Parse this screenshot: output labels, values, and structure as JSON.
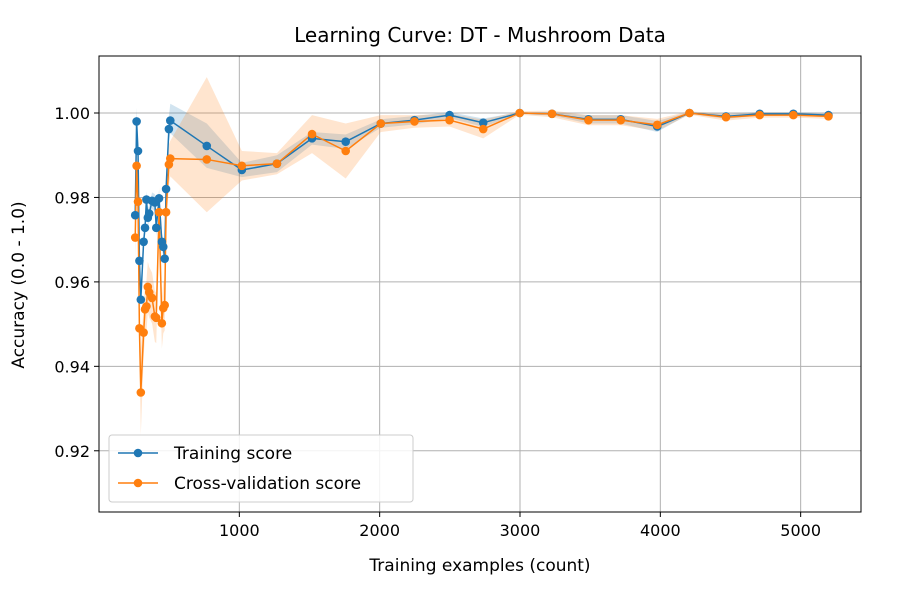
{
  "chart_data": {
    "type": "line",
    "title": "Learning Curve: DT - Mushroom Data",
    "xlabel": "Training examples (count)",
    "ylabel": "Accuracy (0.0 - 1.0)",
    "xlim": [
      0,
      5430
    ],
    "ylim": [
      0.9055,
      1.0135
    ],
    "x_ticks": [
      1000,
      2000,
      3000,
      4000,
      5000
    ],
    "y_ticks": [
      0.92,
      0.94,
      0.96,
      0.98,
      1.0
    ],
    "y_tick_labels": [
      "0.92",
      "0.94",
      "0.96",
      "0.98",
      "1.00"
    ],
    "grid": true,
    "legend_position": "lower-left",
    "series": [
      {
        "name": "Training score",
        "color": "#1f77b4",
        "points": [
          [
            258,
            0.9758
          ],
          [
            268,
            0.998
          ],
          [
            278,
            0.991
          ],
          [
            288,
            0.965
          ],
          [
            298,
            0.9558
          ],
          [
            318,
            0.9695
          ],
          [
            328,
            0.9728
          ],
          [
            338,
            0.9795
          ],
          [
            348,
            0.9752
          ],
          [
            358,
            0.9762
          ],
          [
            378,
            0.9792
          ],
          [
            398,
            0.9788
          ],
          [
            408,
            0.9728
          ],
          [
            428,
            0.9798
          ],
          [
            448,
            0.9695
          ],
          [
            458,
            0.9683
          ],
          [
            468,
            0.9655
          ],
          [
            478,
            0.982
          ],
          [
            498,
            0.9962
          ],
          [
            508,
            0.9982
          ],
          [
            768,
            0.9922
          ],
          [
            1018,
            0.9865
          ],
          [
            1268,
            0.988
          ],
          [
            1518,
            0.994
          ],
          [
            1758,
            0.9932
          ],
          [
            2008,
            0.9975
          ],
          [
            2248,
            0.9983
          ],
          [
            2498,
            0.9995
          ],
          [
            2738,
            0.9977
          ],
          [
            2998,
            1.0
          ],
          [
            3228,
            0.9998
          ],
          [
            3488,
            0.9985
          ],
          [
            3718,
            0.9985
          ],
          [
            3978,
            0.9968
          ],
          [
            4208,
            1.0
          ],
          [
            4468,
            0.9992
          ],
          [
            4708,
            0.9998
          ],
          [
            4948,
            0.9998
          ],
          [
            5198,
            0.9995
          ]
        ],
        "band": [
          [
            258,
            0.9738,
            0.9778
          ],
          [
            268,
            0.9948,
            1.0012
          ],
          [
            278,
            0.9885,
            0.9935
          ],
          [
            288,
            0.9628,
            0.9672
          ],
          [
            298,
            0.9538,
            0.9578
          ],
          [
            318,
            0.9675,
            0.9715
          ],
          [
            328,
            0.9708,
            0.9748
          ],
          [
            338,
            0.9775,
            0.9815
          ],
          [
            348,
            0.9732,
            0.9772
          ],
          [
            358,
            0.9742,
            0.9782
          ],
          [
            378,
            0.9772,
            0.9812
          ],
          [
            398,
            0.9768,
            0.9808
          ],
          [
            408,
            0.9708,
            0.9748
          ],
          [
            428,
            0.9778,
            0.9818
          ],
          [
            448,
            0.9675,
            0.9715
          ],
          [
            458,
            0.9663,
            0.9703
          ],
          [
            468,
            0.9635,
            0.9675
          ],
          [
            478,
            0.98,
            0.984
          ],
          [
            498,
            0.9932,
            0.9992
          ],
          [
            508,
            0.9952,
            1.0022
          ],
          [
            768,
            0.987,
            0.9975
          ],
          [
            1018,
            0.9848,
            0.9882
          ],
          [
            1268,
            0.986,
            0.99
          ],
          [
            1518,
            0.9925,
            0.9955
          ],
          [
            1758,
            0.9915,
            0.9949
          ],
          [
            2008,
            0.9965,
            0.9985
          ],
          [
            2248,
            0.9973,
            0.9993
          ],
          [
            2498,
            0.9988,
            1.0002
          ],
          [
            2738,
            0.9967,
            0.9987
          ],
          [
            2998,
            0.9998,
            1.0002
          ],
          [
            3228,
            0.9994,
            1.0002
          ],
          [
            3488,
            0.9975,
            0.9995
          ],
          [
            3718,
            0.9975,
            0.9995
          ],
          [
            3978,
            0.9955,
            0.9981
          ],
          [
            4208,
            0.9998,
            1.0002
          ],
          [
            4468,
            0.9986,
            0.9998
          ],
          [
            4708,
            0.9994,
            1.0002
          ],
          [
            4948,
            0.9994,
            1.0002
          ],
          [
            5198,
            0.9991,
            0.9999
          ]
        ]
      },
      {
        "name": "Cross-validation score",
        "color": "#ff7f0e",
        "points": [
          [
            258,
            0.9705
          ],
          [
            268,
            0.9875
          ],
          [
            278,
            0.979
          ],
          [
            288,
            0.949
          ],
          [
            298,
            0.9338
          ],
          [
            318,
            0.948
          ],
          [
            328,
            0.9535
          ],
          [
            338,
            0.9542
          ],
          [
            348,
            0.9588
          ],
          [
            358,
            0.9575
          ],
          [
            378,
            0.9562
          ],
          [
            398,
            0.9518
          ],
          [
            408,
            0.9515
          ],
          [
            428,
            0.9765
          ],
          [
            448,
            0.9502
          ],
          [
            458,
            0.9538
          ],
          [
            468,
            0.9545
          ],
          [
            478,
            0.9765
          ],
          [
            498,
            0.9878
          ],
          [
            508,
            0.9892
          ],
          [
            768,
            0.989
          ],
          [
            1018,
            0.9875
          ],
          [
            1268,
            0.988
          ],
          [
            1518,
            0.995
          ],
          [
            1758,
            0.991
          ],
          [
            2008,
            0.9975
          ],
          [
            2248,
            0.998
          ],
          [
            2498,
            0.9983
          ],
          [
            2738,
            0.9962
          ],
          [
            2998,
            1.0
          ],
          [
            3228,
            0.9998
          ],
          [
            3488,
            0.9983
          ],
          [
            3718,
            0.9983
          ],
          [
            3978,
            0.9972
          ],
          [
            4208,
            1.0
          ],
          [
            4468,
            0.999
          ],
          [
            4708,
            0.9995
          ],
          [
            4948,
            0.9995
          ],
          [
            5198,
            0.9992
          ]
        ],
        "band": [
          [
            258,
            0.9655,
            0.9755
          ],
          [
            268,
            0.982,
            0.993
          ],
          [
            278,
            0.9735,
            0.9845
          ],
          [
            288,
            0.943,
            0.955
          ],
          [
            298,
            0.9238,
            0.9438
          ],
          [
            318,
            0.942,
            0.954
          ],
          [
            328,
            0.9475,
            0.9595
          ],
          [
            338,
            0.9482,
            0.9602
          ],
          [
            348,
            0.9528,
            0.9648
          ],
          [
            358,
            0.9515,
            0.9635
          ],
          [
            378,
            0.9502,
            0.9622
          ],
          [
            398,
            0.9458,
            0.9578
          ],
          [
            408,
            0.9455,
            0.9575
          ],
          [
            428,
            0.9705,
            0.9825
          ],
          [
            448,
            0.9442,
            0.9562
          ],
          [
            458,
            0.9478,
            0.9598
          ],
          [
            468,
            0.9485,
            0.9605
          ],
          [
            478,
            0.9705,
            0.9825
          ],
          [
            498,
            0.983,
            0.9926
          ],
          [
            508,
            0.985,
            0.9934
          ],
          [
            768,
            0.9765,
            1.0085
          ],
          [
            1018,
            0.984,
            0.991
          ],
          [
            1268,
            0.9855,
            0.9905
          ],
          [
            1518,
            0.9905,
            0.9995
          ],
          [
            1758,
            0.9845,
            0.9975
          ],
          [
            2008,
            0.9955,
            0.9995
          ],
          [
            2248,
            0.9965,
            0.9995
          ],
          [
            2498,
            0.9968,
            0.9998
          ],
          [
            2738,
            0.994,
            0.9984
          ],
          [
            2998,
            0.9996,
            1.0004
          ],
          [
            3228,
            0.999,
            1.0006
          ],
          [
            3488,
            0.9971,
            0.9995
          ],
          [
            3718,
            0.9971,
            0.9995
          ],
          [
            3978,
            0.9958,
            0.9986
          ],
          [
            4208,
            0.9996,
            1.0004
          ],
          [
            4468,
            0.9982,
            0.9998
          ],
          [
            4708,
            0.9989,
            1.0001
          ],
          [
            4948,
            0.9989,
            1.0001
          ],
          [
            5198,
            0.9986,
            0.9998
          ]
        ]
      }
    ]
  }
}
